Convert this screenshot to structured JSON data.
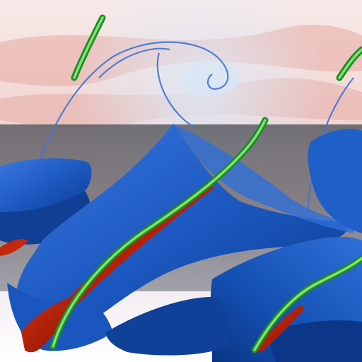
{
  "scene": {
    "kind": "3d-flow-visualization-render",
    "colors": {
      "background_top": "#f6e2df",
      "background_band_red": "#e4aaa3",
      "background_band_blue": "#cfe0f2",
      "overlay_band": "#6e6e78",
      "surface_dark": "#0d3f99",
      "surface_mid": "#1d5ec8",
      "surface_light": "#3b7ae0",
      "streamline": "#2aa836",
      "streamline_highlight": "#8df07b",
      "red_sheet": "#a81a08"
    },
    "elements": [
      "vortex-surface",
      "streamline-tube",
      "red-sheet",
      "background-slice",
      "overlay-band"
    ]
  }
}
